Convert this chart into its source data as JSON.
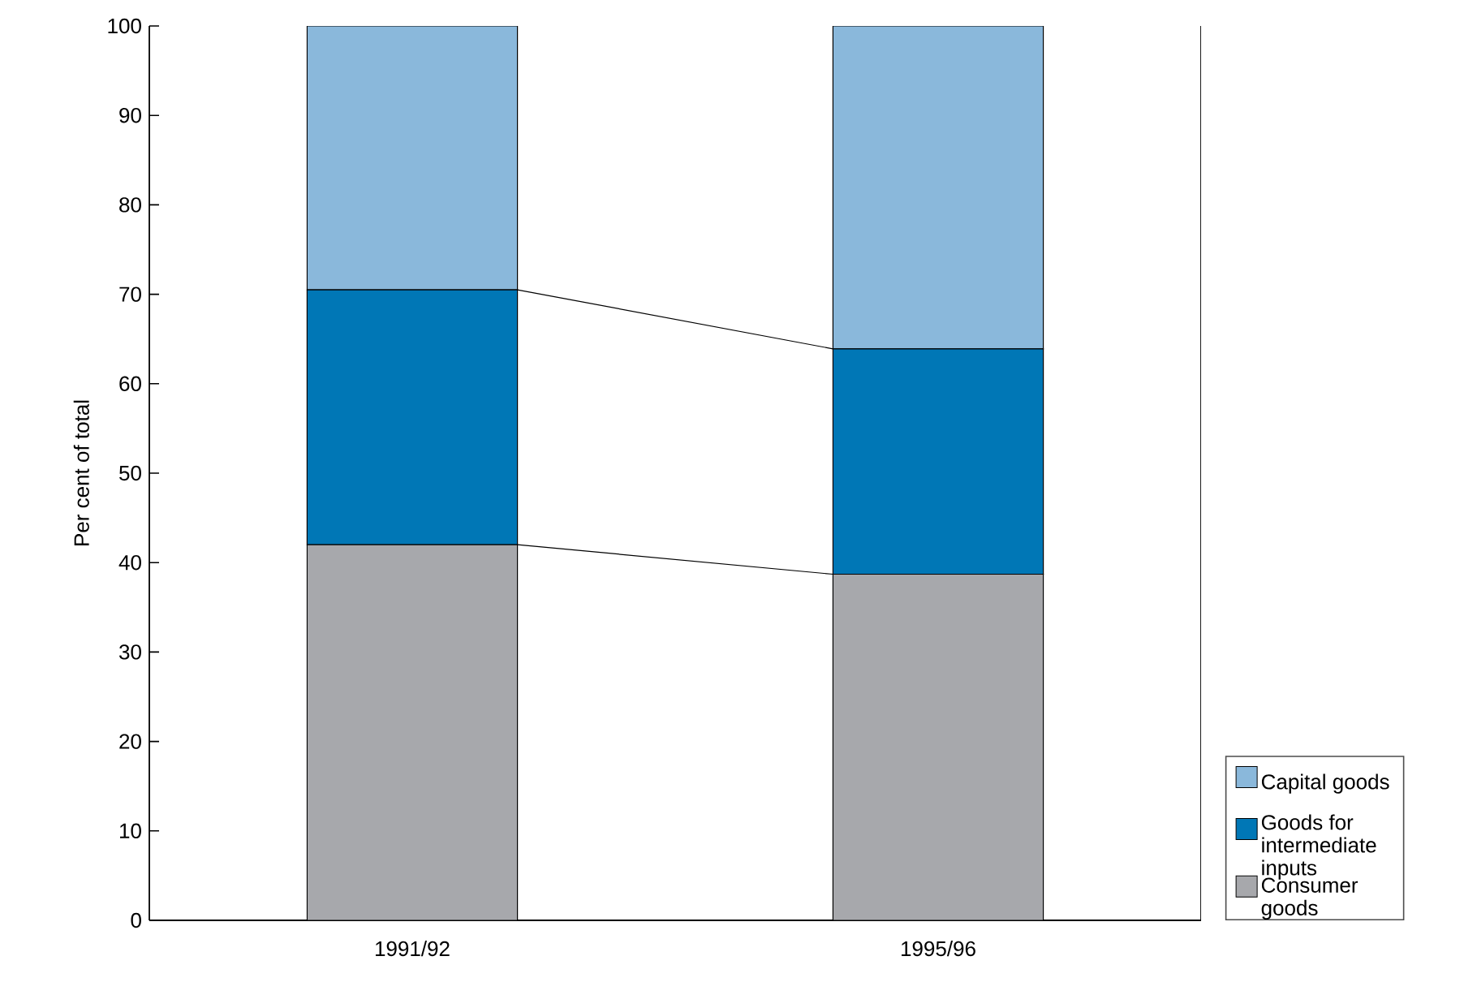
{
  "chart_data": {
    "type": "bar",
    "stacked": true,
    "ylabel": "Per cent of total",
    "categories": [
      "1991/92",
      "1995/96"
    ],
    "series": [
      {
        "name": "Consumer goods",
        "color": "#a7a8ac",
        "values": [
          42,
          38.7
        ]
      },
      {
        "name": "Goods for intermediate inputs",
        "color": "#0077b6",
        "values": [
          28.5,
          25.2
        ]
      },
      {
        "name": "Capital goods",
        "color": "#8ab8db",
        "values": [
          29.5,
          36.1
        ]
      }
    ],
    "ylim": [
      0,
      100
    ],
    "yticks": [
      0,
      10,
      20,
      30,
      40,
      50,
      60,
      70,
      80,
      90,
      100
    ],
    "grid": false,
    "legend": "bottom right"
  }
}
